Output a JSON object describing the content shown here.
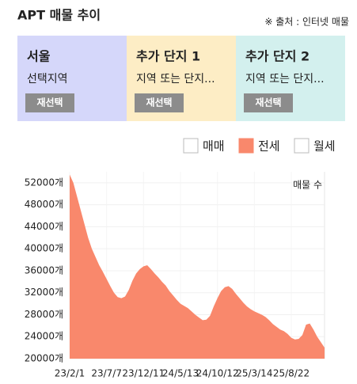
{
  "header": {
    "title": "APT 매물 추이",
    "source": "※ 출처 : 인터넷 매물"
  },
  "panels": [
    {
      "title": "서울",
      "subtitle": "선택지역",
      "button": "재선택",
      "color": "#3848c8",
      "background": "#d5d7fa"
    },
    {
      "title": "추가 단지 1",
      "subtitle": "지역 또는 단지...",
      "button": "재선택",
      "color": "#f0901a",
      "background": "#fdedc5"
    },
    {
      "title": "추가 단지 2",
      "subtitle": "지역 또는 단지...",
      "button": "재선택",
      "color": "#16988e",
      "background": "#d3f0ee"
    }
  ],
  "chart_data": {
    "type": "area",
    "y_label": "매물 수",
    "legend": [
      {
        "name": "매매",
        "checked": false
      },
      {
        "name": "전세",
        "checked": true
      },
      {
        "name": "월세",
        "checked": false
      }
    ],
    "color": "#f9886c",
    "categories": [
      "23/2/1",
      null,
      null,
      null,
      null,
      null,
      null,
      null,
      null,
      null,
      "23/7/7",
      null,
      null,
      null,
      null,
      null,
      null,
      null,
      null,
      null,
      "23/12/11",
      null,
      null,
      null,
      null,
      null,
      null,
      null,
      null,
      null,
      "24/5/13",
      null,
      null,
      null,
      null,
      null,
      null,
      null,
      null,
      null,
      "24/10/12",
      null,
      null,
      null,
      null,
      null,
      null,
      null,
      null,
      null,
      "25/3/14",
      null,
      null,
      null,
      null,
      null,
      null,
      null,
      null,
      null,
      "25/8/22",
      null,
      null,
      null,
      null,
      null,
      null,
      null,
      null,
      null
    ],
    "values": [
      53500,
      52000,
      49500,
      47000,
      44500,
      42000,
      40000,
      38500,
      37000,
      35800,
      34500,
      33200,
      32000,
      31200,
      31000,
      31300,
      32500,
      34200,
      35500,
      36300,
      36800,
      37000,
      36300,
      35500,
      34800,
      34000,
      33300,
      32300,
      31500,
      30700,
      30000,
      29600,
      29200,
      28600,
      28000,
      27500,
      27000,
      27100,
      27800,
      29500,
      31000,
      32300,
      33000,
      33200,
      32700,
      31800,
      31000,
      30200,
      29500,
      29000,
      28600,
      28300,
      28000,
      27600,
      27000,
      26300,
      25800,
      25300,
      25000,
      24500,
      23800,
      23500,
      23600,
      24300,
      26200,
      26400,
      25300,
      24000,
      23000,
      22000
    ],
    "ylim": [
      20000,
      54000
    ],
    "yticks": [
      {
        "value": 20000,
        "label": "20000개"
      },
      {
        "value": 24000,
        "label": "24000개"
      },
      {
        "value": 28000,
        "label": "28000개"
      },
      {
        "value": 32000,
        "label": "32000개"
      },
      {
        "value": 36000,
        "label": "36000개"
      },
      {
        "value": 40000,
        "label": "40000개"
      },
      {
        "value": 44000,
        "label": "44000개"
      },
      {
        "value": 48000,
        "label": "48000개"
      },
      {
        "value": 52000,
        "label": "52000개"
      }
    ],
    "grid": true
  }
}
